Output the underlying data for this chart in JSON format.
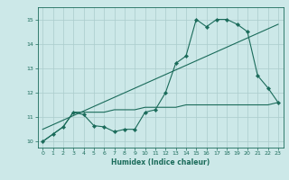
{
  "title": "",
  "xlabel": "Humidex (Indice chaleur)",
  "bg_color": "#cce8e8",
  "grid_color": "#aacccc",
  "line_color": "#1a6b5a",
  "xlim": [
    -0.5,
    23.5
  ],
  "ylim": [
    9.75,
    15.5
  ],
  "xticks": [
    0,
    1,
    2,
    3,
    4,
    5,
    6,
    7,
    8,
    9,
    10,
    11,
    12,
    13,
    14,
    15,
    16,
    17,
    18,
    19,
    20,
    21,
    22,
    23
  ],
  "yticks": [
    10,
    11,
    12,
    13,
    14,
    15
  ],
  "main_line_x": [
    0,
    1,
    2,
    3,
    4,
    5,
    6,
    7,
    8,
    9,
    10,
    11,
    12,
    13,
    14,
    15,
    16,
    17,
    18,
    19,
    20,
    21,
    22,
    23
  ],
  "main_line_y": [
    10.0,
    10.3,
    10.6,
    11.2,
    11.1,
    10.65,
    10.6,
    10.4,
    10.5,
    10.5,
    11.2,
    11.3,
    12.0,
    13.2,
    13.5,
    15.0,
    14.7,
    15.0,
    15.0,
    14.8,
    14.5,
    12.7,
    12.2,
    11.6
  ],
  "trend_line_x": [
    0,
    23
  ],
  "trend_line_y": [
    10.5,
    14.8
  ],
  "step_line_x": [
    0,
    1,
    2,
    3,
    4,
    5,
    6,
    7,
    8,
    9,
    10,
    11,
    12,
    13,
    14,
    15,
    16,
    17,
    18,
    19,
    20,
    21,
    22,
    23
  ],
  "step_line_y": [
    10.0,
    10.3,
    10.6,
    11.2,
    11.2,
    11.2,
    11.2,
    11.3,
    11.3,
    11.3,
    11.4,
    11.4,
    11.4,
    11.4,
    11.5,
    11.5,
    11.5,
    11.5,
    11.5,
    11.5,
    11.5,
    11.5,
    11.5,
    11.6
  ],
  "marker": "D",
  "markersize": 2.2,
  "linewidth": 0.8
}
